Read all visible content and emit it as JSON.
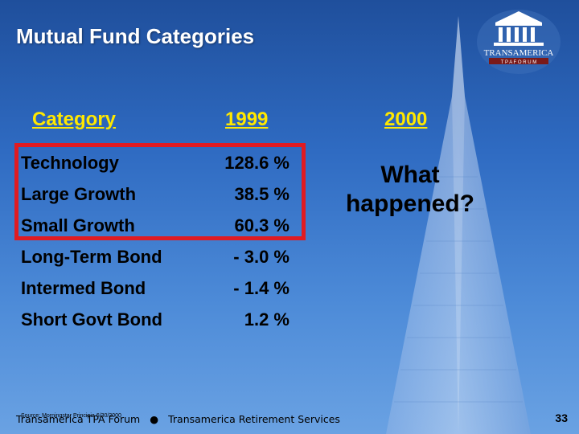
{
  "title": "Mutual Fund Categories",
  "logo": {
    "brand": "TRANSAMERICA",
    "subtitle": "TPA FORUM"
  },
  "table": {
    "headers": [
      "Category",
      "1999",
      "2000"
    ],
    "rows": [
      {
        "category": "Technology",
        "y1999": "128.6 %"
      },
      {
        "category": "Large Growth",
        "y1999": "38.5 %"
      },
      {
        "category": "Small Growth",
        "y1999": "60.3 %"
      },
      {
        "category": "Long-Term Bond",
        "y1999": "- 3.0 %"
      },
      {
        "category": "Intermed Bond",
        "y1999": "- 1.4 %"
      },
      {
        "category": "Short Govt Bond",
        "y1999": "1.2 %"
      }
    ]
  },
  "question": "What happened?",
  "source": "Source: Morningstar Principia 6/30/2000",
  "footer": {
    "left": "Transamerica TPA Forum",
    "separator": "●",
    "right": "Transamerica Retirement Services"
  },
  "page_number": "33",
  "colors": {
    "background": "#2f6bc2",
    "header": "#ffe800",
    "highlight": "#e01b22"
  }
}
